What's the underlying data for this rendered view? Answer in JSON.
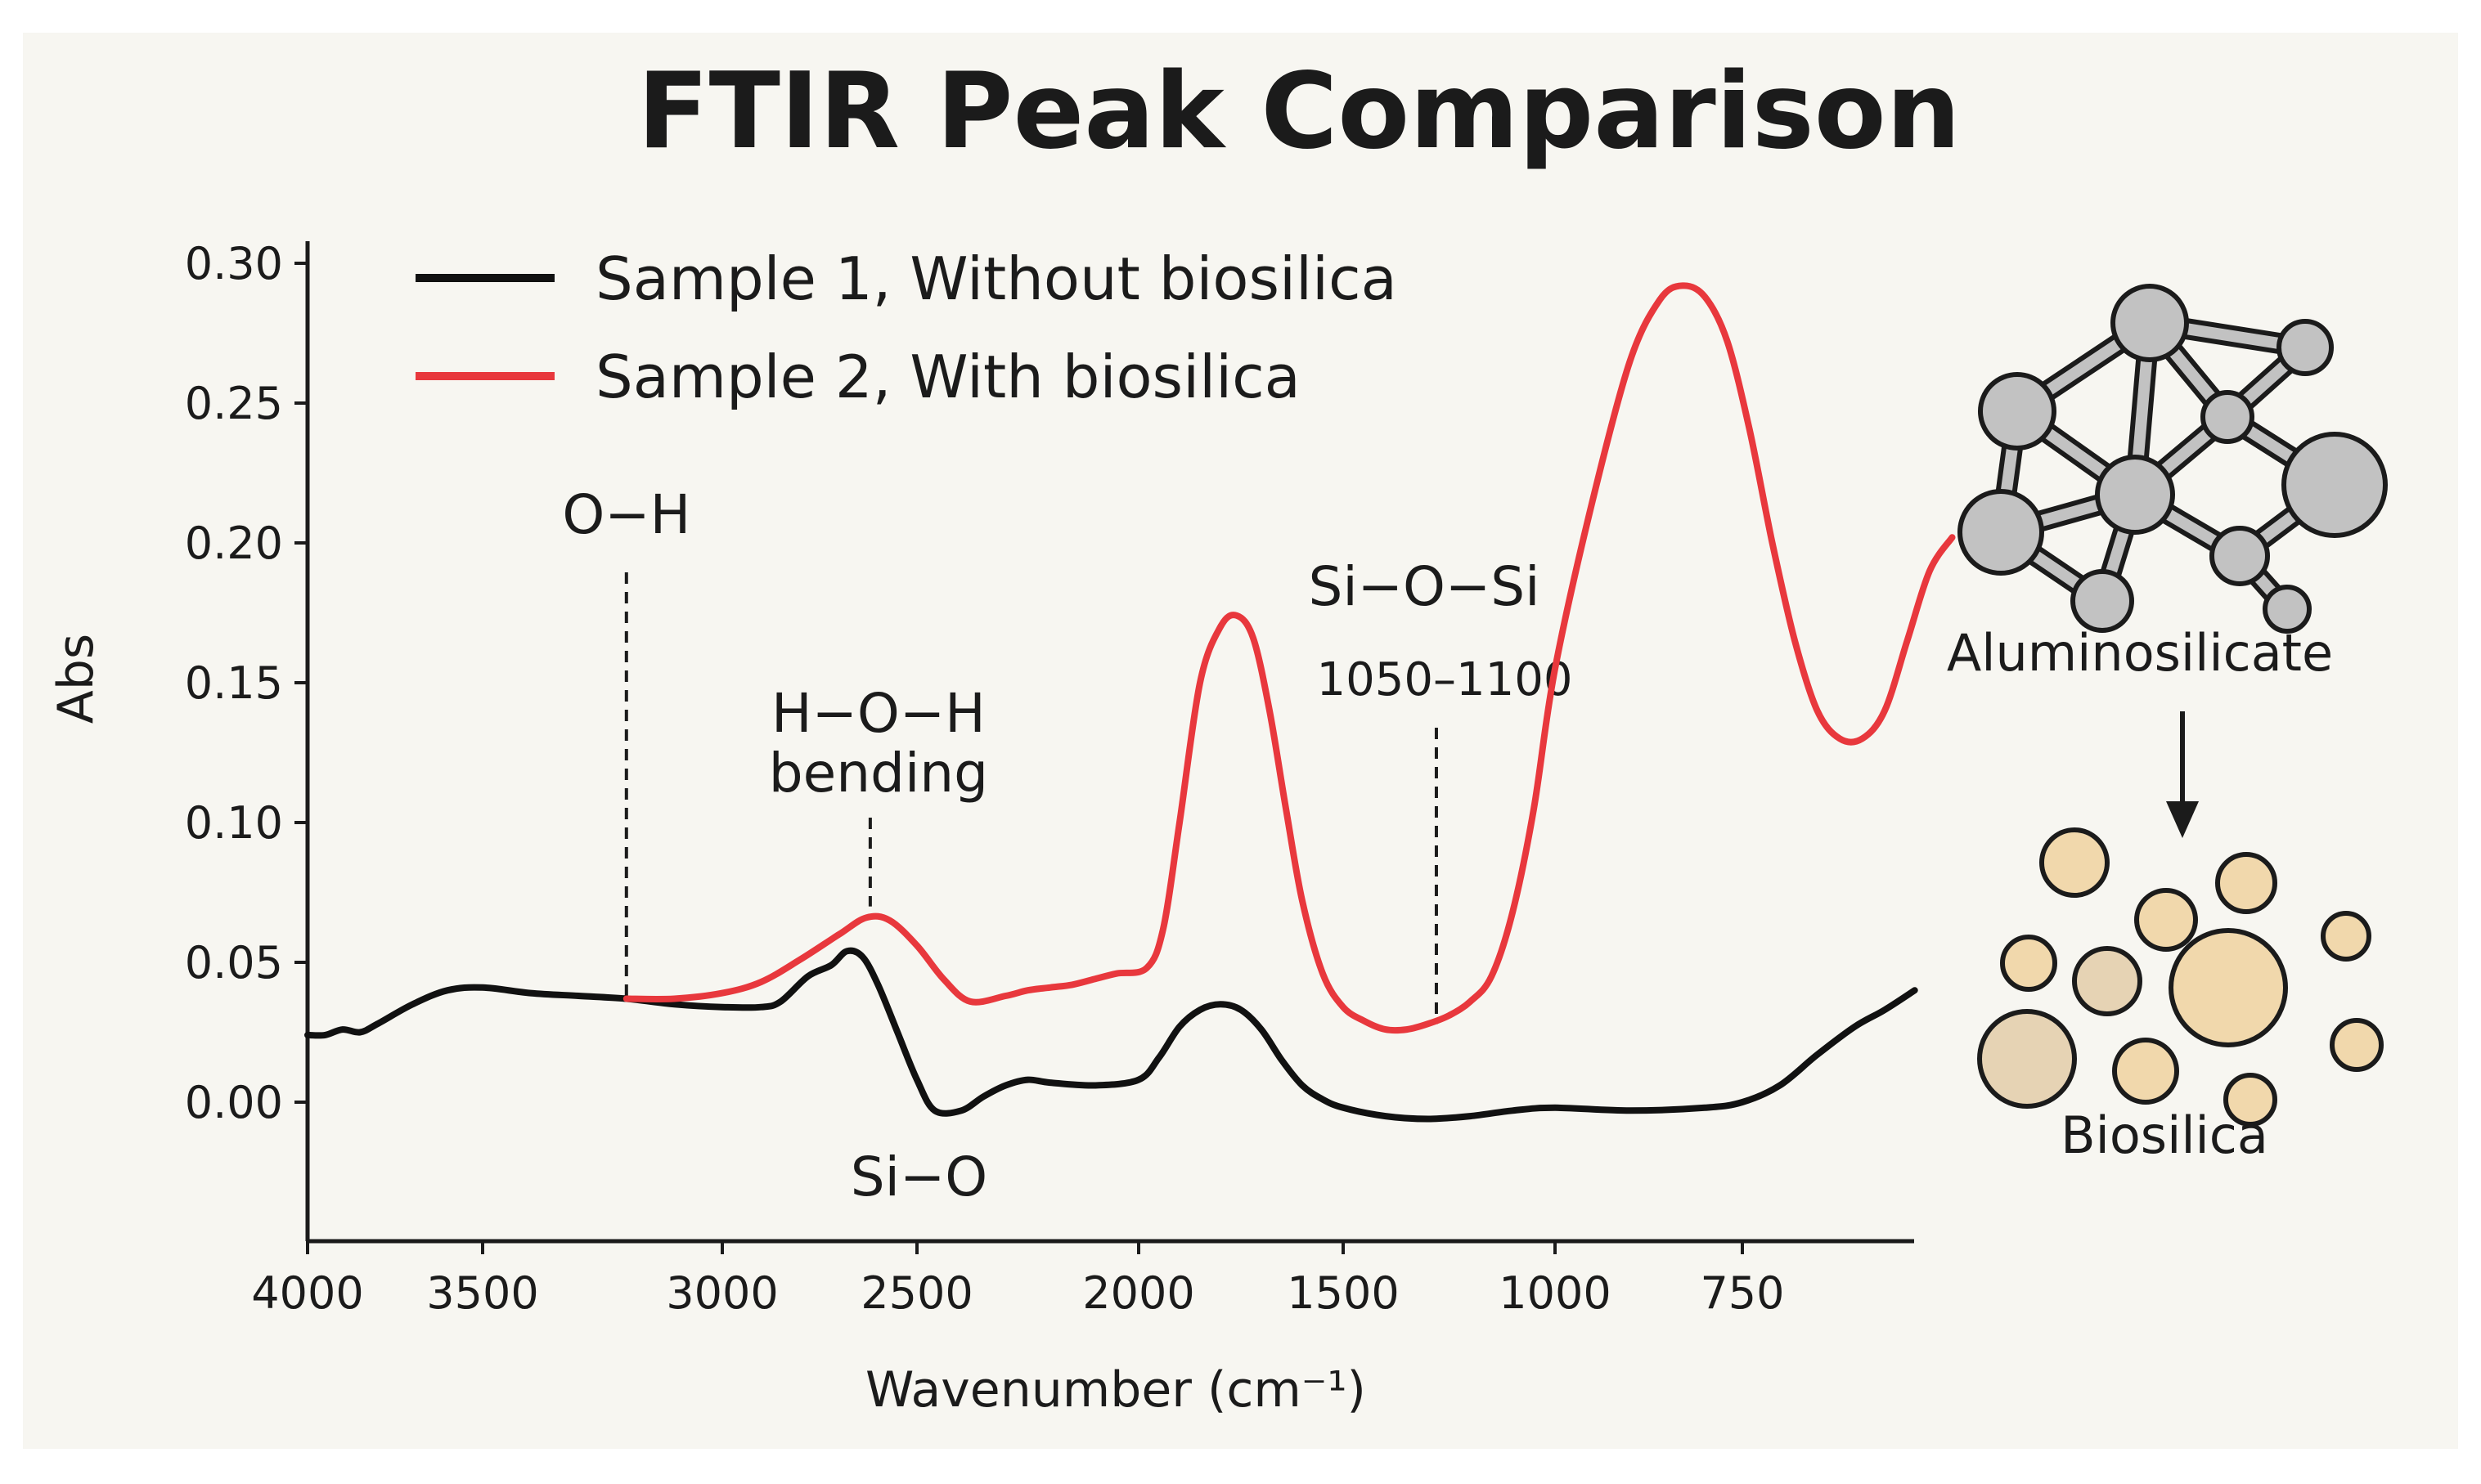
{
  "chart_data": {
    "type": "line",
    "title": "FTIR Peak Comparison",
    "xlabel": "Wavenumber (cm⁻¹)",
    "ylabel": "Abs",
    "xlim": [
      4000,
      550
    ],
    "ylim": [
      -0.05,
      0.3
    ],
    "x_ticks": [
      4000,
      3500,
      3000,
      2500,
      2000,
      1500,
      1000,
      750
    ],
    "x_tick_labels": [
      "4000",
      "3500",
      "3000",
      "2500",
      "2000",
      "1500",
      "1000",
      "750"
    ],
    "y_ticks": [
      0.0,
      0.05,
      0.1,
      0.15,
      0.2,
      0.25,
      0.3
    ],
    "y_tick_labels": [
      "0.00",
      "0.05",
      "0.10",
      "0.15",
      "0.20",
      "0.25",
      "0.30"
    ],
    "legend_position": "top-left",
    "series": [
      {
        "name": "Sample 1, Without biosilica",
        "color": "#111111",
        "points": [
          [
            4000,
            0.024
          ],
          [
            3950,
            0.024
          ],
          [
            3900,
            0.026
          ],
          [
            3850,
            0.025
          ],
          [
            3800,
            0.028
          ],
          [
            3700,
            0.035
          ],
          [
            3600,
            0.04
          ],
          [
            3500,
            0.041
          ],
          [
            3400,
            0.039
          ],
          [
            3300,
            0.038
          ],
          [
            3200,
            0.037
          ],
          [
            3100,
            0.035
          ],
          [
            3000,
            0.034
          ],
          [
            2900,
            0.034
          ],
          [
            2850,
            0.036
          ],
          [
            2780,
            0.045
          ],
          [
            2720,
            0.049
          ],
          [
            2680,
            0.054
          ],
          [
            2640,
            0.052
          ],
          [
            2600,
            0.042
          ],
          [
            2550,
            0.025
          ],
          [
            2500,
            0.008
          ],
          [
            2460,
            -0.003
          ],
          [
            2400,
            -0.003
          ],
          [
            2350,
            0.002
          ],
          [
            2300,
            0.006
          ],
          [
            2250,
            0.008
          ],
          [
            2200,
            0.007
          ],
          [
            2100,
            0.006
          ],
          [
            2000,
            0.008
          ],
          [
            1950,
            0.016
          ],
          [
            1900,
            0.027
          ],
          [
            1850,
            0.033
          ],
          [
            1800,
            0.035
          ],
          [
            1750,
            0.033
          ],
          [
            1700,
            0.026
          ],
          [
            1650,
            0.015
          ],
          [
            1600,
            0.006
          ],
          [
            1550,
            0.001
          ],
          [
            1500,
            -0.002
          ],
          [
            1400,
            -0.005
          ],
          [
            1300,
            -0.006
          ],
          [
            1200,
            -0.005
          ],
          [
            1100,
            -0.003
          ],
          [
            1000,
            -0.002
          ],
          [
            900,
            -0.003
          ],
          [
            800,
            -0.002
          ],
          [
            750,
            0.0
          ],
          [
            700,
            0.006
          ],
          [
            650,
            0.017
          ],
          [
            600,
            0.027
          ],
          [
            560,
            0.033
          ],
          [
            520,
            0.04
          ]
        ]
      },
      {
        "name": "Sample 2, With biosilica",
        "color": "#e8383d",
        "points": [
          [
            3200,
            0.037
          ],
          [
            3100,
            0.037
          ],
          [
            3000,
            0.039
          ],
          [
            2900,
            0.043
          ],
          [
            2800,
            0.051
          ],
          [
            2700,
            0.06
          ],
          [
            2630,
            0.066
          ],
          [
            2570,
            0.065
          ],
          [
            2500,
            0.056
          ],
          [
            2440,
            0.044
          ],
          [
            2380,
            0.036
          ],
          [
            2300,
            0.038
          ],
          [
            2250,
            0.04
          ],
          [
            2200,
            0.041
          ],
          [
            2150,
            0.042
          ],
          [
            2100,
            0.044
          ],
          [
            2050,
            0.046
          ],
          [
            1980,
            0.048
          ],
          [
            1940,
            0.062
          ],
          [
            1900,
            0.1
          ],
          [
            1850,
            0.15
          ],
          [
            1800,
            0.17
          ],
          [
            1760,
            0.174
          ],
          [
            1720,
            0.166
          ],
          [
            1680,
            0.14
          ],
          [
            1640,
            0.105
          ],
          [
            1600,
            0.072
          ],
          [
            1550,
            0.046
          ],
          [
            1500,
            0.034
          ],
          [
            1450,
            0.029
          ],
          [
            1400,
            0.026
          ],
          [
            1350,
            0.026
          ],
          [
            1300,
            0.028
          ],
          [
            1250,
            0.031
          ],
          [
            1200,
            0.036
          ],
          [
            1150,
            0.045
          ],
          [
            1100,
            0.068
          ],
          [
            1050,
            0.105
          ],
          [
            1000,
            0.155
          ],
          [
            950,
            0.215
          ],
          [
            900,
            0.265
          ],
          [
            860,
            0.287
          ],
          [
            830,
            0.292
          ],
          [
            800,
            0.288
          ],
          [
            770,
            0.272
          ],
          [
            740,
            0.24
          ],
          [
            710,
            0.2
          ],
          [
            680,
            0.165
          ],
          [
            650,
            0.14
          ],
          [
            620,
            0.13
          ],
          [
            590,
            0.13
          ],
          [
            560,
            0.14
          ],
          [
            530,
            0.165
          ],
          [
            500,
            0.19
          ],
          [
            470,
            0.202
          ]
        ]
      }
    ],
    "annotations": [
      {
        "label": "O−H",
        "x": 3200
      },
      {
        "label": "H−O−H",
        "label2": "bending",
        "x": 2620
      },
      {
        "label": "Si−O−Si",
        "label2": "1050–1100",
        "x": 1280
      },
      {
        "label": "Si−O",
        "x": 2440
      }
    ],
    "side_labels": {
      "top": "Aluminosilicate",
      "bottom": "Biosilica"
    },
    "colors": {
      "background": "#f7f6f1",
      "aluminosilicate_node": "#c2c2c2",
      "biosilica_particle": "#f1d8ac"
    }
  }
}
